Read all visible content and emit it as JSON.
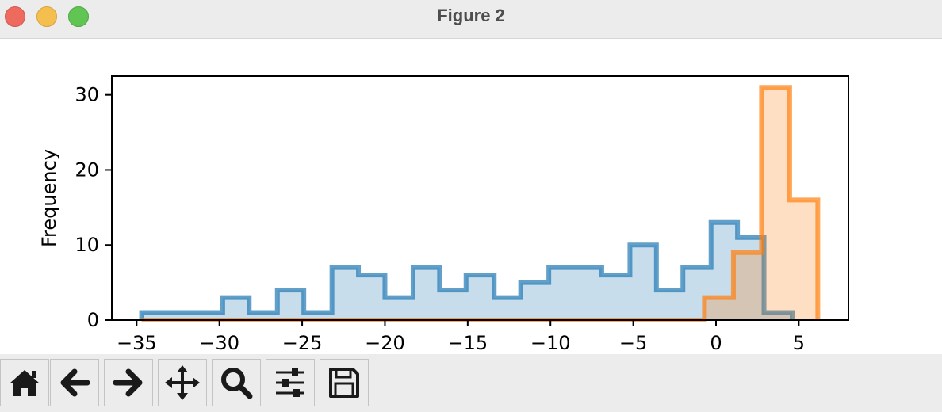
{
  "window": {
    "title": "Figure 2"
  },
  "toolbar": {
    "buttons": [
      {
        "name": "home-button",
        "icon": "home-icon"
      },
      {
        "name": "back-button",
        "icon": "arrow-left-icon"
      },
      {
        "name": "forward-button",
        "icon": "arrow-right-icon"
      },
      {
        "name": "pan-button",
        "icon": "move-icon"
      },
      {
        "name": "zoom-button",
        "icon": "search-icon"
      },
      {
        "name": "configure-subplots-button",
        "icon": "sliders-icon"
      },
      {
        "name": "save-button",
        "icon": "floppy-disk-icon"
      }
    ]
  },
  "chart_data": {
    "type": "histogram",
    "xlabel": "",
    "ylabel": "Frequency",
    "xlim": [
      -36.5,
      8
    ],
    "ylim": [
      0,
      32.5
    ],
    "xticks": [
      -35,
      -30,
      -25,
      -20,
      -15,
      -10,
      -5,
      0,
      5
    ],
    "xtick_labels": [
      "−35",
      "−30",
      "−25",
      "−20",
      "−15",
      "−10",
      "−5",
      "0",
      "5"
    ],
    "yticks": [
      0,
      10,
      20,
      30
    ],
    "ytick_labels": [
      "0",
      "10",
      "20",
      "30"
    ],
    "grid": false,
    "legend": null,
    "series": [
      {
        "color": "#1f77b4",
        "histtype": "stepfilled+step",
        "fill_alpha": 0.25,
        "line_alpha": 0.7,
        "edges": [
          -34.7,
          -33.1,
          -31.4,
          -29.8,
          -28.2,
          -26.5,
          -24.9,
          -23.2,
          -21.6,
          -20.0,
          -18.3,
          -16.7,
          -15.1,
          -13.4,
          -11.8,
          -10.1,
          -8.5,
          -6.9,
          -5.2,
          -3.6,
          -2.0,
          -0.3,
          1.3,
          2.9,
          4.6
        ],
        "counts": [
          1,
          1,
          1,
          3,
          1,
          4,
          1,
          7,
          6,
          3,
          7,
          4,
          6,
          3,
          5,
          7,
          7,
          6,
          10,
          4,
          7,
          13,
          11,
          1
        ]
      },
      {
        "color": "#ff7f0e",
        "histtype": "stepfilled+step",
        "fill_alpha": 0.25,
        "line_alpha": 0.7,
        "edges": [
          -34.7,
          -0.7,
          1.05,
          2.75,
          4.45,
          6.15
        ],
        "counts": [
          0,
          3,
          9,
          31,
          16
        ]
      }
    ]
  }
}
